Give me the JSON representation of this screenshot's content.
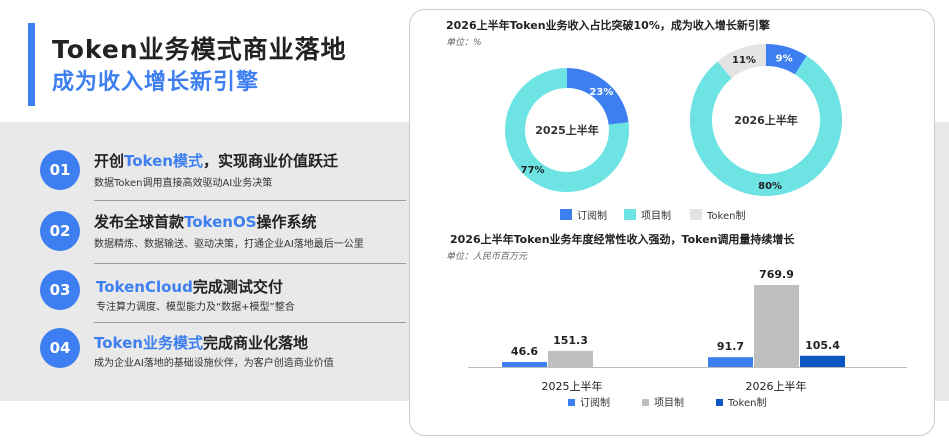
{
  "header": {
    "title_line1": "Token业务模式商业落地",
    "title_line2": "成为收入增长新引擎"
  },
  "items": [
    {
      "num": "01",
      "head_pre": "开创",
      "head_hl": "Token模式",
      "head_post": "，实现商业价值跃迁",
      "sub": "数据Token调用直接高效驱动AI业务决策"
    },
    {
      "num": "02",
      "head_pre": "发布全球首款",
      "head_hl": "TokenOS",
      "head_post": "操作系统",
      "sub": "数据精炼、数据输送、驱动决策，打通企业AI落地最后一公里"
    },
    {
      "num": "03",
      "head_pre": "",
      "head_hl": "TokenCloud",
      "head_post": "完成测试交付",
      "sub": "专注算力调度、模型能力及“数据+模型”整合"
    },
    {
      "num": "04",
      "head_pre": "",
      "head_hl": "Token业务模式",
      "head_post": "完成商业化落地",
      "sub": "成为企业AI落地的基础设施伙伴，为客户创造商业价值"
    }
  ],
  "colors": {
    "accent": "#3d7ff0",
    "subscription": "#3d7ff0",
    "project": "#6ee3e3",
    "token_pie": "#e3e3e3",
    "project_bar": "#bfbfbf",
    "token_bar": "#0b56c2"
  },
  "chart_data": [
    {
      "type": "pie",
      "title": "2026上半年Token业务收入占比突破10%，成为收入增长新引擎",
      "unit": "单位：%",
      "legend": [
        "订阅制",
        "项目制",
        "Token制"
      ],
      "legend_position": "bottom",
      "donuts": [
        {
          "label": "2025上半年",
          "slices": [
            {
              "name": "订阅制",
              "value": 23,
              "label": "23%"
            },
            {
              "name": "项目制",
              "value": 77,
              "label": "77%"
            }
          ]
        },
        {
          "label": "2026上半年",
          "slices": [
            {
              "name": "Token制",
              "value": 11,
              "label": "11%"
            },
            {
              "name": "订阅制",
              "value": 9,
              "label": "9%"
            },
            {
              "name": "项目制",
              "value": 80,
              "label": "80%"
            }
          ]
        }
      ]
    },
    {
      "type": "bar",
      "title": "2026上半年Token业务年度经常性收入强劲，Token调用量持续增长",
      "unit": "单位：人民币百万元",
      "categories": [
        "2025上半年",
        "2026上半年"
      ],
      "series": [
        {
          "name": "订阅制",
          "values": [
            46.6,
            91.7
          ],
          "labels": [
            "46.6",
            "91.7"
          ]
        },
        {
          "name": "项目制",
          "values": [
            151.3,
            769.9
          ],
          "labels": [
            "151.3",
            "769.9"
          ]
        },
        {
          "name": "Token制",
          "values": [
            null,
            105.4
          ],
          "labels": [
            "",
            "105.4"
          ]
        }
      ],
      "ylim": [
        0,
        850
      ],
      "legend_position": "bottom"
    }
  ]
}
